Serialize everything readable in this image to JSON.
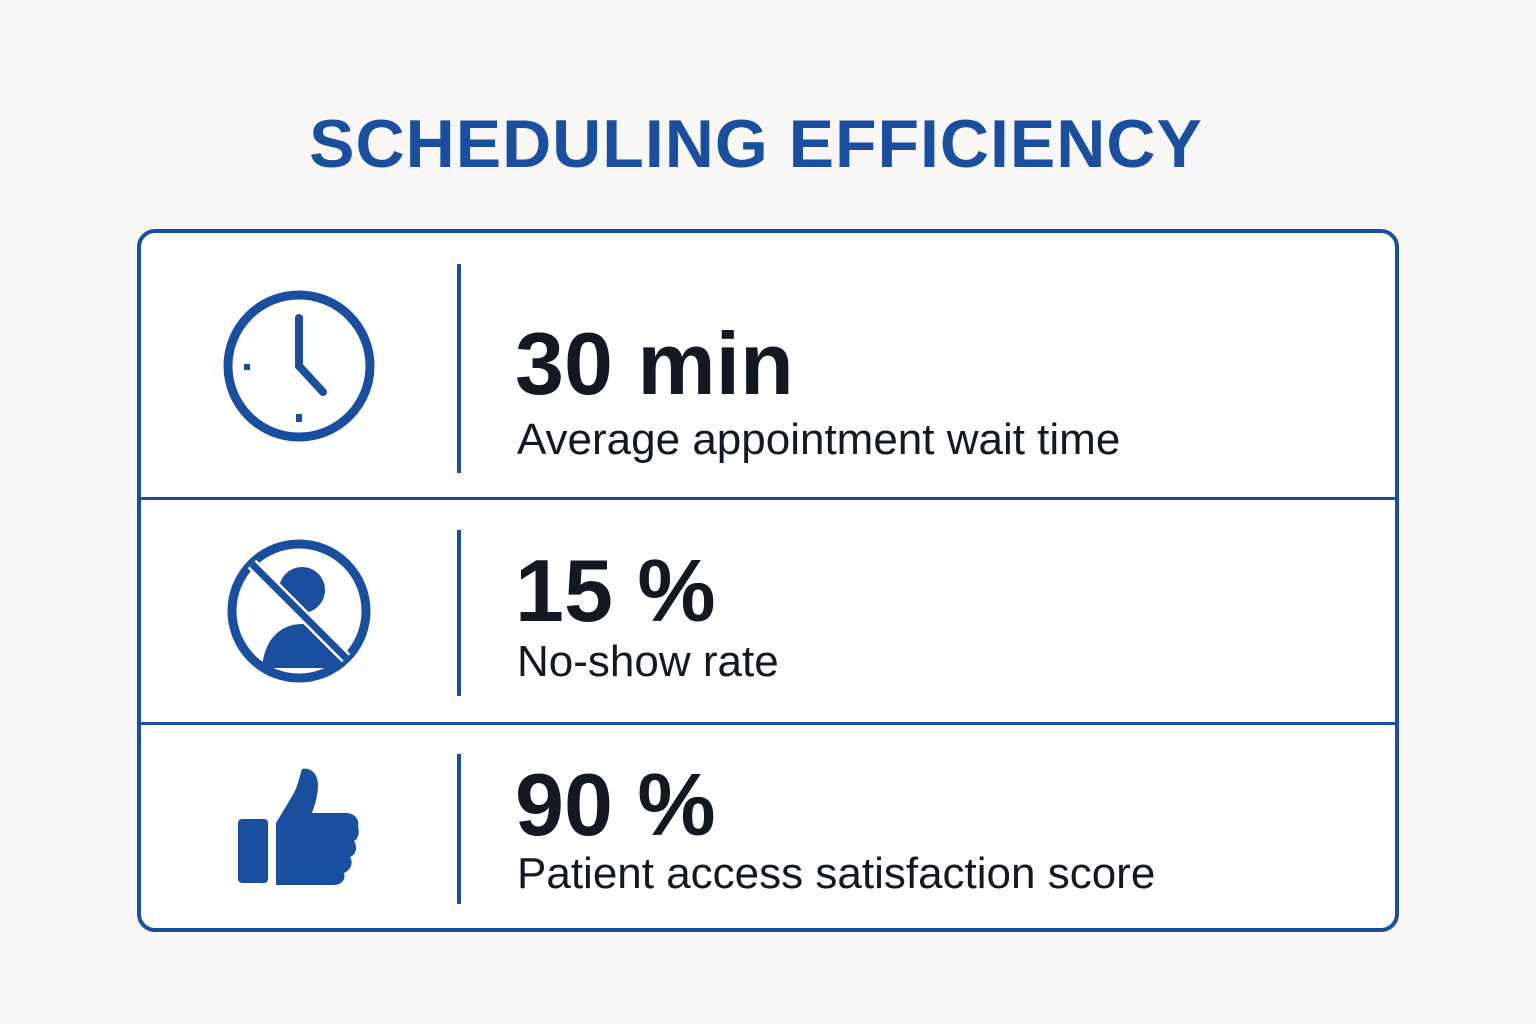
{
  "title": "SCHEDULING EFFICIENCY",
  "colors": {
    "accent": "#1a4fa0",
    "text": "#141820",
    "background": "#f8f7f6",
    "card": "#ffffff"
  },
  "metrics": [
    {
      "icon": "clock-icon",
      "value": "30 min",
      "label": "Average appointment wait time"
    },
    {
      "icon": "no-show-icon",
      "value": "15 %",
      "label": "No-show rate"
    },
    {
      "icon": "thumbs-up-icon",
      "value": "90 %",
      "label": "Patient access satisfaction score"
    }
  ]
}
